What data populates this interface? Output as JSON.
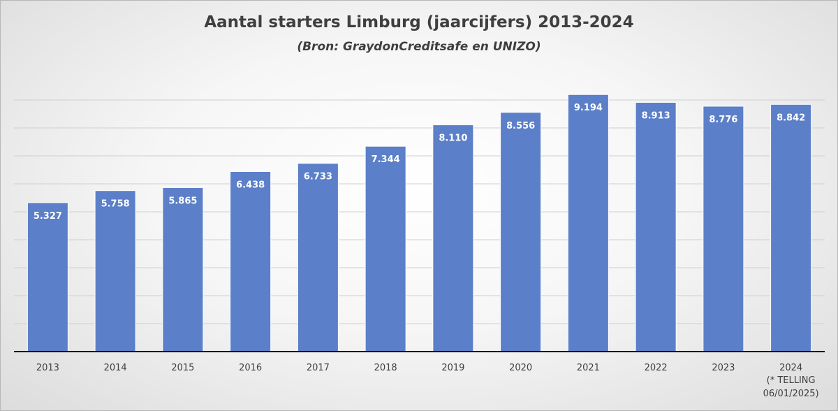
{
  "chart_data": {
    "type": "bar",
    "title": "Aantal starters Limburg (jaarcijfers) 2013-2024",
    "subtitle": "(Bron: GraydonCreditsafe  en UNIZO)",
    "categories": [
      "2013",
      "2014",
      "2015",
      "2016",
      "2017",
      "2018",
      "2019",
      "2020",
      "2021",
      "2022",
      "2023",
      "2024"
    ],
    "values": [
      5327,
      5758,
      5865,
      6438,
      6733,
      7344,
      8110,
      8556,
      9194,
      8913,
      8776,
      8842
    ],
    "data_labels": [
      "5.327",
      "5.758",
      "5.865",
      "6.438",
      "6.733",
      "7.344",
      "8.110",
      "8.556",
      "9.194",
      "8.913",
      "8.776",
      "8.842"
    ],
    "category_notes": [
      "",
      "",
      "",
      "",
      "",
      "",
      "",
      "",
      "",
      "",
      "",
      "(* TELLING 06/01/2025)"
    ],
    "note_lines": [
      "(* TELLING",
      "06/01/2025)"
    ],
    "ylim": [
      0,
      9000
    ],
    "xlabel": "",
    "ylabel": "",
    "grid": true,
    "legend": "none",
    "bar_color": "#5b7fc8",
    "gridline_color": "#cfcfcf"
  }
}
